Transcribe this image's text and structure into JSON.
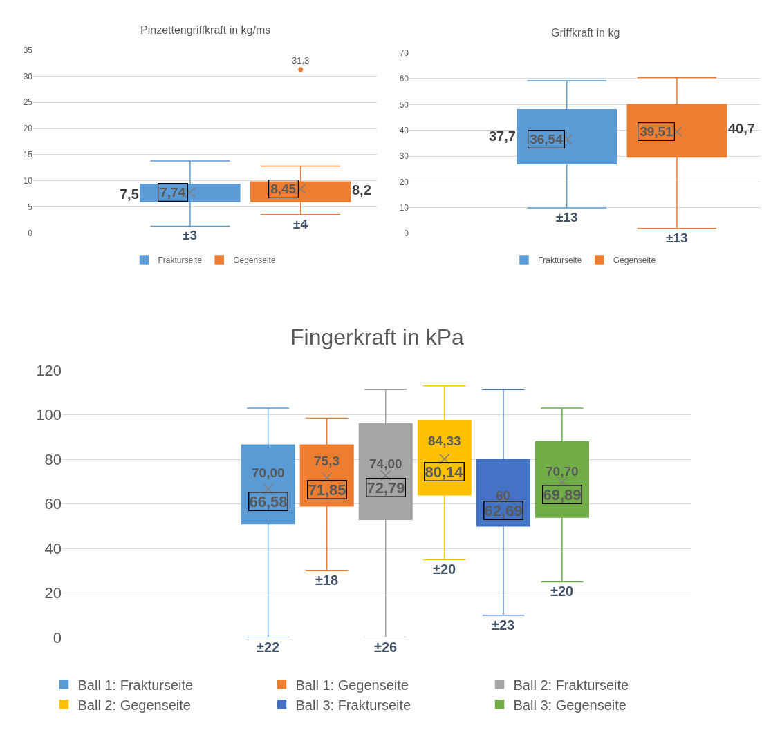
{
  "chart_data": [
    {
      "type": "box",
      "title": "Pinzettengriffkraft in kg/ms",
      "categories": [
        null
      ],
      "ylim": [
        0,
        35
      ],
      "yticks": [
        0,
        5,
        10,
        15,
        20,
        25,
        30,
        35
      ],
      "grid": "y",
      "legend": "bottom",
      "series": [
        {
          "name": "Frakturseite",
          "color": "#5b9bd5",
          "boxes": [
            {
              "low": 1.3,
              "q1": 6.0,
              "median": 7.5,
              "q3": 9.3,
              "high": 13.8,
              "mean": 7.74
            }
          ]
        },
        {
          "name": "Gegenseite",
          "color": "#ed7d31",
          "boxes": [
            {
              "low": 3.5,
              "q1": 6.0,
              "median": 8.2,
              "q3": 9.8,
              "high": 12.8,
              "mean": 8.45,
              "outliers": [
                31.3
              ]
            }
          ]
        }
      ],
      "annotations": [
        "7,5",
        "7,74",
        "±3",
        "8,45",
        "8,2",
        "31,3",
        "±4"
      ]
    },
    {
      "type": "box",
      "title": "Griffkraft in kg",
      "categories": [
        null
      ],
      "ylim": [
        0,
        70
      ],
      "yticks": [
        0,
        10,
        20,
        30,
        40,
        50,
        60,
        70
      ],
      "grid": "y",
      "legend": "bottom",
      "series": [
        {
          "name": "Frakturseite",
          "color": "#5b9bd5",
          "boxes": [
            {
              "low": 10,
              "q1": 27,
              "median": 37.7,
              "q3": 48,
              "high": 59.2,
              "mean": 36.54
            }
          ]
        },
        {
          "name": "Gegenseite",
          "color": "#ed7d31",
          "boxes": [
            {
              "low": 2,
              "q1": 29.6,
              "median": 40.7,
              "q3": 50,
              "high": 60.4,
              "mean": 39.51
            }
          ]
        }
      ],
      "annotations": [
        "37,7",
        "36,54",
        "±13",
        "39,51",
        "40,7",
        "±13"
      ]
    },
    {
      "type": "box",
      "title": "Fingerkraft in kPa",
      "categories": [
        null
      ],
      "ylim": [
        0,
        120
      ],
      "yticks": [
        0,
        20,
        40,
        60,
        80,
        100,
        120
      ],
      "grid": "y",
      "legend": "bottom",
      "series": [
        {
          "name": "Ball 1: Frakturseite",
          "color": "#5b9bd5",
          "boxes": [
            {
              "low": 0,
              "q1": 51,
              "median": 70.0,
              "q3": 86.5,
              "high": 103,
              "mean": 66.58
            }
          ]
        },
        {
          "name": "Ball 1: Gegenseite",
          "color": "#ed7d31",
          "boxes": [
            {
              "low": 30,
              "q1": 59,
              "median": 75.3,
              "q3": 86.5,
              "high": 98.5,
              "mean": 71.85
            }
          ]
        },
        {
          "name": "Ball 2: Frakturseite",
          "color": "#a5a5a5",
          "boxes": [
            {
              "low": 0,
              "q1": 53,
              "median": 74.0,
              "q3": 96,
              "high": 111.5,
              "mean": 72.79
            }
          ]
        },
        {
          "name": "Ball 2: Gegenseite",
          "color": "#ffc000",
          "boxes": [
            {
              "low": 35,
              "q1": 64,
              "median": 84.33,
              "q3": 97.5,
              "high": 113,
              "mean": 80.14
            }
          ]
        },
        {
          "name": "Ball 3: Frakturseite",
          "color": "#4472c4",
          "boxes": [
            {
              "low": 10,
              "q1": 50,
              "median": 60,
              "q3": 80,
              "high": 111.5,
              "mean": 62.69
            }
          ]
        },
        {
          "name": "Ball 3: Gegenseite",
          "color": "#70ad47",
          "boxes": [
            {
              "low": 25,
              "q1": 54,
              "median": 70.7,
              "q3": 88,
              "high": 103,
              "mean": 69.89
            }
          ]
        }
      ],
      "annotations": [
        "70,00",
        "66,58",
        "±22",
        "75,3",
        "71,85",
        "±18",
        "74,00",
        "72,79",
        "±26",
        "84,33",
        "80,14",
        "±20",
        "60",
        "62,69",
        "±23",
        "70,70",
        "69,89",
        "±20"
      ]
    }
  ]
}
